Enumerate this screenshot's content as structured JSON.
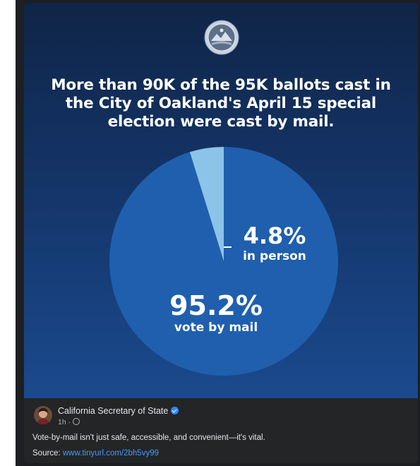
{
  "graphic": {
    "headline": "More than 90K of the 95K ballots cast in the City of Oakland's April 15 special election were cast by mail.",
    "seal_icon": "state-seal-icon"
  },
  "chart_data": {
    "type": "pie",
    "title": "",
    "slices": [
      {
        "label": "vote by mail",
        "value": 95.2,
        "value_text": "95.2%",
        "color": "#1f5fae"
      },
      {
        "label": "in person",
        "value": 4.8,
        "value_text": "4.8%",
        "color": "#8cc3e8"
      }
    ]
  },
  "post": {
    "page_name": "California Secretary of State",
    "time": "1h",
    "separator": "·",
    "body": "Vote-by-mail isn't just safe, accessible, and convenient—it's vital.",
    "source_label": "Source:",
    "source_link": "www.tinyurl.com/2bh5vy99",
    "avatar_icon": "profile-photo-avatar",
    "verified_icon": "verified-badge-icon",
    "audience_icon": "globe-icon"
  },
  "colors": {
    "background_top": "#0f2547",
    "background_bottom": "#1a4a8e",
    "mail_slice": "#1f5fae",
    "in_person_slice": "#8cc3e8",
    "link": "#4599ff"
  }
}
